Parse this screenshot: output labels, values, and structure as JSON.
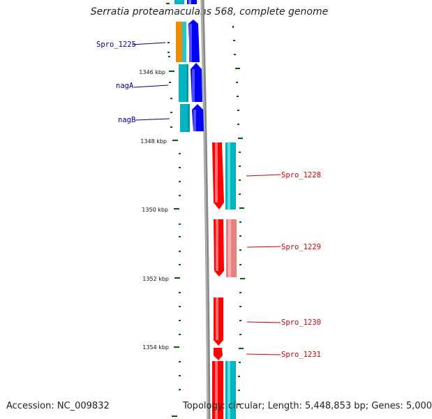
{
  "title": "Serratia proteamaculans 568, complete genome",
  "footer": {
    "accession": "Accession: NC_009832",
    "topology": "Topology: circular; Length: 5,448,853 bp; Genes: 5,000"
  },
  "scale": {
    "unit_suffix": "kbp",
    "ticks": [
      {
        "kbp": 1346,
        "label": "1346 kbp"
      },
      {
        "kbp": 1348,
        "label": "1348 kbp"
      },
      {
        "kbp": 1350,
        "label": "1350 kbp"
      },
      {
        "kbp": 1352,
        "label": "1352 kbp"
      },
      {
        "kbp": 1354,
        "label": "1354 kbp"
      }
    ]
  },
  "colors": {
    "backbone": "#8a8a8a",
    "forward_gene": "#0000ff",
    "reverse_gene": "#ff0000",
    "cog_teal": "#00b4c0",
    "cog_orange": "#f08a00",
    "cog_pink": "#e88080",
    "tick": "#006400",
    "left_labels": "#000099",
    "right_labels": "#cc0000"
  },
  "genes": [
    {
      "name": "Spro_1225",
      "strand": "forward",
      "cog_color": "orange",
      "labeled": true
    },
    {
      "name": "nagA",
      "strand": "forward",
      "cog_color": "teal",
      "labeled": true
    },
    {
      "name": "nagB",
      "strand": "forward",
      "cog_color": "teal",
      "labeled": true
    },
    {
      "name": "Spro_1228",
      "strand": "reverse",
      "cog_color": "teal",
      "labeled": true
    },
    {
      "name": "Spro_1229",
      "strand": "reverse",
      "cog_color": "pink",
      "labeled": true
    },
    {
      "name": "Spro_1230",
      "strand": "reverse",
      "cog_color": "none",
      "labeled": true
    },
    {
      "name": "Spro_1231",
      "strand": "reverse",
      "cog_color": "none",
      "labeled": true
    }
  ]
}
